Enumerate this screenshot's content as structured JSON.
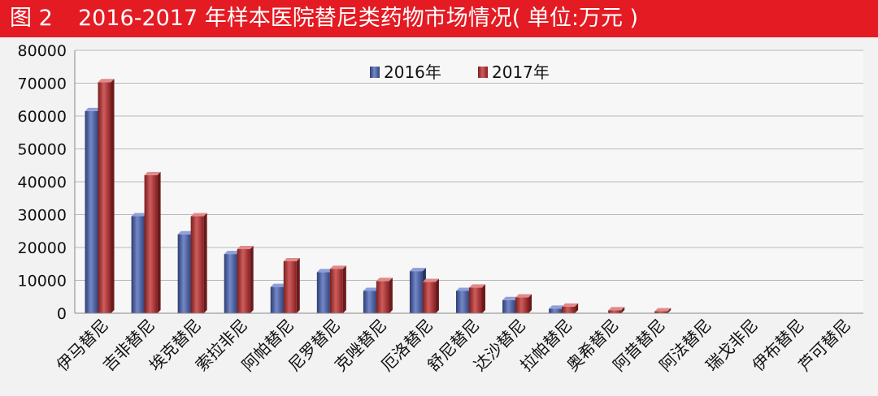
{
  "header": {
    "figure_label": "图 2",
    "title": "2016-2017 年样本医院替尼类药物市场情况( 单位:万元 )"
  },
  "colors": {
    "title_bar": "#e41b23",
    "series_2016": "#4a5fa3",
    "series_2017": "#b03a3a"
  },
  "chart_data": {
    "type": "bar",
    "title": "2016-2017 年样本医院替尼类药物市场情况( 单位:万元 )",
    "categories": [
      "伊马替尼",
      "吉非替尼",
      "埃克替尼",
      "索拉非尼",
      "阿帕替尼",
      "尼罗替尼",
      "克唑替尼",
      "厄洛替尼",
      "舒尼替尼",
      "达沙替尼",
      "拉帕替尼",
      "奥希替尼",
      "阿昔替尼",
      "阿法替尼",
      "瑞戈非尼",
      "伊布替尼",
      "芦可替尼"
    ],
    "series": [
      {
        "name": "2016年",
        "values": [
          61500,
          29500,
          24000,
          18000,
          8000,
          12500,
          6800,
          12800,
          6800,
          4000,
          1400,
          0,
          0,
          0,
          0,
          0,
          0
        ]
      },
      {
        "name": "2017年",
        "values": [
          70300,
          42000,
          29500,
          19500,
          15800,
          13500,
          9800,
          9500,
          7800,
          4800,
          2000,
          900,
          600,
          0,
          0,
          0,
          0
        ]
      }
    ],
    "ylim": [
      0,
      80000
    ],
    "yticks": [
      "0",
      "10000",
      "20000",
      "30000",
      "40000",
      "50000",
      "60000",
      "70000",
      "80000"
    ],
    "xlabel": "",
    "ylabel": "",
    "grid": true,
    "legend_position": "top-center"
  }
}
